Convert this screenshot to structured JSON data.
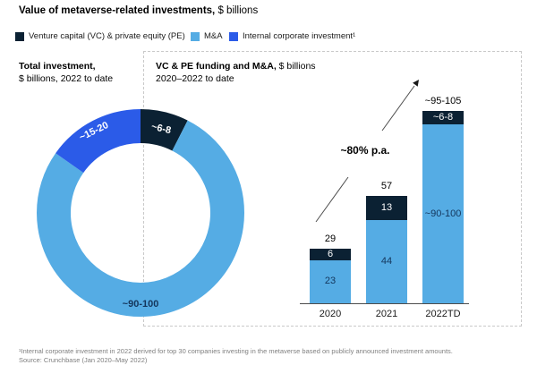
{
  "title": {
    "bold": "Value of metaverse-related investments,",
    "regular": "$ billions"
  },
  "palette": {
    "navy": "#0B2133",
    "light_blue": "#55ACE4",
    "blue": "#2B5BE8",
    "on_light_label": "#14365C",
    "white": "#FFFFFF",
    "axis_gray": "#4D4D4D",
    "footnote_gray": "#7F7F7F",
    "dashed_border": "#C9C9C9"
  },
  "legend": [
    {
      "label": "Venture capital (VC) & private equity (PE)",
      "color_key": "navy"
    },
    {
      "label": "M&A",
      "color_key": "light_blue"
    },
    {
      "label": "Internal corporate investment¹",
      "color_key": "blue"
    }
  ],
  "chart_data": [
    {
      "type": "pie",
      "subtype": "donut",
      "title": "Total investment,",
      "subtitle": "$ billions, 2022 to date",
      "slices": [
        {
          "label": "Venture capital (VC) & private equity (PE)",
          "value_label": "~6-8",
          "value": 7,
          "color_key": "navy",
          "sweep_deg": 27,
          "label_angle_deg": 13.5,
          "label_radius": 97,
          "label_rotate_deg": 13,
          "label_color": "white"
        },
        {
          "label": "M&A",
          "value_label": "~90-100",
          "value": 95,
          "color_key": "light_blue",
          "sweep_deg": 278,
          "label_angle_deg": 180,
          "label_radius": 102,
          "label_rotate_deg": 0,
          "label_color": "navy"
        },
        {
          "label": "Internal corporate investment",
          "value_label": "~15-20",
          "value": 17.5,
          "color_key": "blue",
          "sweep_deg": 55,
          "label_angle_deg": 330,
          "label_radius": 105,
          "label_rotate_deg": -26,
          "label_color": "white"
        }
      ]
    },
    {
      "type": "bar",
      "stacked": true,
      "title_bold": "VC & PE funding and M&A,",
      "title_regular": "$ billions",
      "subtitle": "2020–2022 to date",
      "categories": [
        "2020",
        "2021",
        "2022TD"
      ],
      "series": [
        {
          "name": "M&A",
          "color_key": "light_blue",
          "values": [
            23,
            44,
            95
          ],
          "value_labels": [
            "23",
            "44",
            "~90-100"
          ]
        },
        {
          "name": "Venture capital (VC) & private equity (PE)",
          "color_key": "navy",
          "values": [
            6,
            13,
            7
          ],
          "value_labels": [
            "6",
            "13",
            "~6-8"
          ]
        }
      ],
      "totals": [
        "29",
        "57",
        "~95-105"
      ],
      "annotation": "~80% p.a.",
      "ylim": [
        0,
        105
      ],
      "grid": false,
      "legend_position": "top"
    }
  ],
  "footnotes": [
    "¹Internal corporate investment in 2022 derived for top 30 companies investing in the metaverse based on publicly announced investment amounts.",
    "Source: Crunchbase (Jan 2020–May 2022)"
  ]
}
